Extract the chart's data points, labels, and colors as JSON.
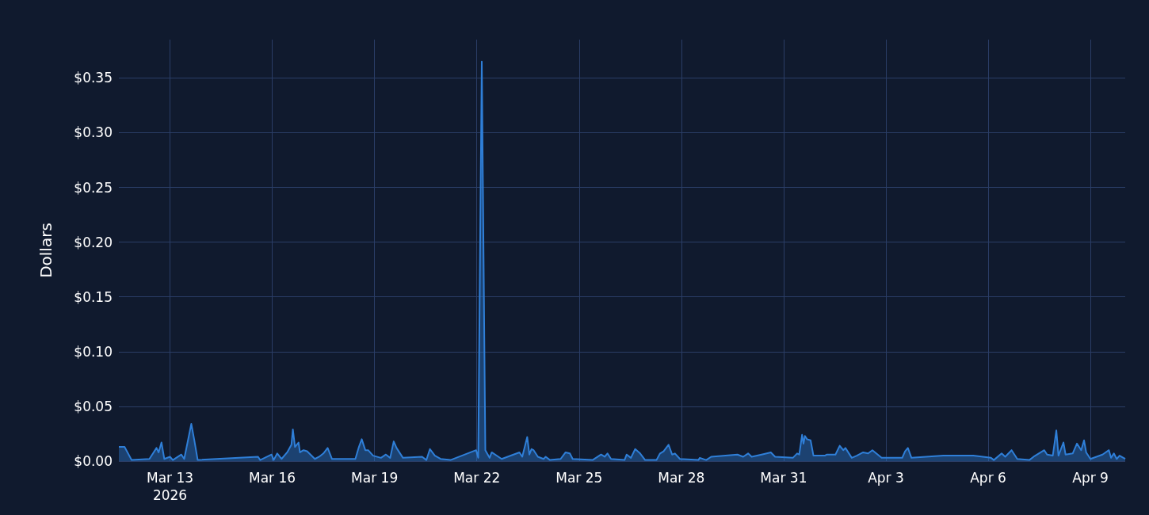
{
  "chart_data": {
    "type": "area",
    "ylabel": "Dollars",
    "grid": true,
    "marker": "none",
    "line_style": "solid",
    "xlim": [
      "2026-03-11T12:00",
      "2026-04-10T00:30"
    ],
    "xticks": [
      {
        "value": "2026-03-13",
        "label": "Mar 13\n2026"
      },
      {
        "value": "2026-03-16",
        "label": "Mar 16"
      },
      {
        "value": "2026-03-19",
        "label": "Mar 19"
      },
      {
        "value": "2026-03-22",
        "label": "Mar 22"
      },
      {
        "value": "2026-03-25",
        "label": "Mar 25"
      },
      {
        "value": "2026-03-28",
        "label": "Mar 28"
      },
      {
        "value": "2026-03-31",
        "label": "Mar 31"
      },
      {
        "value": "2026-04-03",
        "label": "Apr 3"
      },
      {
        "value": "2026-04-06",
        "label": "Apr 6"
      },
      {
        "value": "2026-04-09",
        "label": "Apr 9"
      }
    ],
    "ylim": [
      0,
      0.385
    ],
    "yticks": [
      {
        "value": 0,
        "label": "$0.00"
      },
      {
        "value": 0.05,
        "label": "$0.05"
      },
      {
        "value": 0.1,
        "label": "$0.10"
      },
      {
        "value": 0.15,
        "label": "$0.15"
      },
      {
        "value": 0.2,
        "label": "$0.20"
      },
      {
        "value": 0.25,
        "label": "$0.25"
      },
      {
        "value": 0.3,
        "label": "$0.30"
      },
      {
        "value": 0.35,
        "label": "$0.35"
      }
    ],
    "series": [
      {
        "color": "#2f7fd8",
        "x": [
          "2026-03-11T12:00",
          "2026-03-11T16:00",
          "2026-03-11T21:00",
          "2026-03-12T09:30",
          "2026-03-12T14:30",
          "2026-03-12T16:00",
          "2026-03-12T18:00",
          "2026-03-12T20:00",
          "2026-03-13T00:00",
          "2026-03-13T02:00",
          "2026-03-13T08:00",
          "2026-03-13T10:00",
          "2026-03-13T15:00",
          "2026-03-13T17:00",
          "2026-03-13T19:30",
          "2026-03-15T14:00",
          "2026-03-15T15:30",
          "2026-03-15T23:30",
          "2026-03-16T01:00",
          "2026-03-16T03:30",
          "2026-03-16T06:30",
          "2026-03-16T10:30",
          "2026-03-16T13:30",
          "2026-03-16T14:30",
          "2026-03-16T16:00",
          "2026-03-16T18:30",
          "2026-03-16T19:30",
          "2026-03-16T22:00",
          "2026-03-17T00:30",
          "2026-03-17T06:00",
          "2026-03-17T09:00",
          "2026-03-17T12:00",
          "2026-03-17T15:00",
          "2026-03-17T18:00",
          "2026-03-18T10:30",
          "2026-03-18T13:00",
          "2026-03-18T15:00",
          "2026-03-18T17:30",
          "2026-03-18T19:30",
          "2026-03-18T23:00",
          "2026-03-19T04:30",
          "2026-03-19T08:00",
          "2026-03-19T11:00",
          "2026-03-19T13:30",
          "2026-03-19T15:30",
          "2026-03-19T20:00",
          "2026-03-20T09:30",
          "2026-03-20T12:30",
          "2026-03-20T15:00",
          "2026-03-20T18:30",
          "2026-03-20T22:30",
          "2026-03-21T05:30",
          "2026-03-21T23:30",
          "2026-03-22T01:00",
          "2026-03-22T03:30",
          "2026-03-22T06:00",
          "2026-03-22T09:00",
          "2026-03-22T10:30",
          "2026-03-22T17:30",
          "2026-03-23T06:00",
          "2026-03-23T08:00",
          "2026-03-23T11:30",
          "2026-03-23T13:00",
          "2026-03-23T14:30",
          "2026-03-23T16:00",
          "2026-03-23T19:00",
          "2026-03-23T23:00",
          "2026-03-24T00:30",
          "2026-03-24T03:30",
          "2026-03-24T11:00",
          "2026-03-24T14:30",
          "2026-03-24T17:30",
          "2026-03-24T19:30",
          "2026-03-25T09:30",
          "2026-03-25T15:30",
          "2026-03-25T18:00",
          "2026-03-25T20:00",
          "2026-03-25T22:30",
          "2026-03-26T08:00",
          "2026-03-26T09:30",
          "2026-03-26T12:30",
          "2026-03-26T15:30",
          "2026-03-26T19:00",
          "2026-03-26T22:30",
          "2026-03-27T06:30",
          "2026-03-27T09:00",
          "2026-03-27T11:30",
          "2026-03-27T15:00",
          "2026-03-27T17:30",
          "2026-03-27T19:30",
          "2026-03-27T23:00",
          "2026-03-28T12:00",
          "2026-03-28T13:00",
          "2026-03-28T17:30",
          "2026-03-28T21:00",
          "2026-03-29T15:30",
          "2026-03-29T19:30",
          "2026-03-29T23:00",
          "2026-03-30T01:30",
          "2026-03-30T08:30",
          "2026-03-30T15:00",
          "2026-03-30T18:00",
          "2026-03-31T06:30",
          "2026-03-31T09:30",
          "2026-03-31T11:00",
          "2026-03-31T13:00",
          "2026-03-31T14:00",
          "2026-03-31T15:00",
          "2026-03-31T16:30",
          "2026-03-31T19:00",
          "2026-03-31T21:00",
          "2026-04-01T05:00",
          "2026-04-01T06:30",
          "2026-04-01T12:30",
          "2026-04-01T15:30",
          "2026-04-01T18:00",
          "2026-04-01T19:30",
          "2026-04-02T00:00",
          "2026-04-02T03:30",
          "2026-04-02T08:00",
          "2026-04-02T11:30",
          "2026-04-02T14:30",
          "2026-04-02T21:00",
          "2026-04-03T11:30",
          "2026-04-03T13:30",
          "2026-04-03T15:30",
          "2026-04-03T18:00",
          "2026-04-04T16:30",
          "2026-04-05T13:30",
          "2026-04-06T02:00",
          "2026-04-06T04:00",
          "2026-04-06T09:30",
          "2026-04-06T12:00",
          "2026-04-06T16:30",
          "2026-04-06T20:30",
          "2026-04-07T05:00",
          "2026-04-07T08:00",
          "2026-04-07T15:30",
          "2026-04-07T17:30",
          "2026-04-07T21:30",
          "2026-04-08T00:00",
          "2026-04-08T01:30",
          "2026-04-08T05:00",
          "2026-04-08T06:30",
          "2026-04-08T11:30",
          "2026-04-08T14:30",
          "2026-04-08T17:30",
          "2026-04-08T19:30",
          "2026-04-08T21:00",
          "2026-04-09T00:00",
          "2026-04-09T08:30",
          "2026-04-09T13:00",
          "2026-04-09T14:30",
          "2026-04-09T16:30",
          "2026-04-09T18:30",
          "2026-04-09T20:30",
          "2026-04-10T00:30"
        ],
        "values": [
          0.013,
          0.013,
          0.001,
          0.002,
          0.012,
          0.008,
          0.017,
          0.002,
          0.004,
          0.001,
          0.006,
          0.002,
          0.034,
          0.02,
          0.001,
          0.004,
          0.001,
          0.006,
          0.001,
          0.007,
          0.002,
          0.008,
          0.015,
          0.029,
          0.013,
          0.017,
          0.008,
          0.01,
          0.009,
          0.002,
          0.004,
          0.007,
          0.012,
          0.002,
          0.002,
          0.013,
          0.02,
          0.01,
          0.01,
          0.005,
          0.003,
          0.006,
          0.003,
          0.018,
          0.012,
          0.003,
          0.004,
          0.001,
          0.011,
          0.005,
          0.002,
          0.001,
          0.01,
          0.003,
          0.365,
          0.01,
          0.003,
          0.008,
          0.002,
          0.008,
          0.004,
          0.022,
          0.006,
          0.011,
          0.01,
          0.004,
          0.002,
          0.004,
          0.001,
          0.002,
          0.008,
          0.007,
          0.002,
          0.001,
          0.006,
          0.004,
          0.007,
          0.002,
          0.001,
          0.006,
          0.003,
          0.011,
          0.007,
          0.001,
          0.001,
          0.007,
          0.009,
          0.015,
          0.006,
          0.007,
          0.002,
          0.001,
          0.003,
          0.001,
          0.004,
          0.006,
          0.004,
          0.007,
          0.004,
          0.006,
          0.008,
          0.004,
          0.003,
          0.007,
          0.006,
          0.024,
          0.016,
          0.023,
          0.02,
          0.019,
          0.005,
          0.005,
          0.006,
          0.006,
          0.014,
          0.01,
          0.012,
          0.003,
          0.005,
          0.008,
          0.007,
          0.01,
          0.003,
          0.003,
          0.009,
          0.012,
          0.003,
          0.005,
          0.005,
          0.003,
          0.001,
          0.007,
          0.004,
          0.01,
          0.002,
          0.001,
          0.004,
          0.01,
          0.006,
          0.005,
          0.028,
          0.005,
          0.017,
          0.006,
          0.007,
          0.016,
          0.01,
          0.019,
          0.008,
          0.002,
          0.006,
          0.01,
          0.003,
          0.007,
          0.002,
          0.005,
          0.002
        ]
      }
    ]
  }
}
